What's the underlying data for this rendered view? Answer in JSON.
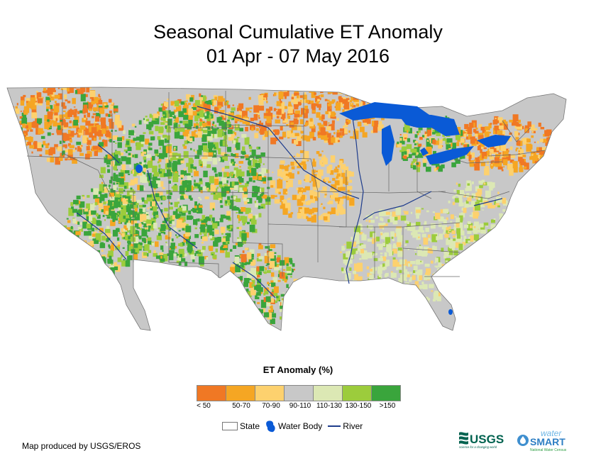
{
  "title": {
    "line1": "Seasonal Cumulative ET Anomaly",
    "line2": "01 Apr - 07 May 2016"
  },
  "legend": {
    "title": "ET Anomaly (%)",
    "classes": [
      {
        "label": "< 50",
        "color": "#f07824"
      },
      {
        "label": "50-70",
        "color": "#f5a623"
      },
      {
        "label": "70-90",
        "color": "#fdd16e"
      },
      {
        "label": "90-110",
        "color": "#c8c8c8"
      },
      {
        "label": "110-130",
        "color": "#dce8b4"
      },
      {
        "label": "130-150",
        "color": "#9ccc3c"
      },
      {
        "label": ">150",
        "color": "#3aa53c"
      }
    ]
  },
  "key": {
    "state": "State",
    "water_body": "Water Body",
    "river": "River"
  },
  "colors": {
    "water": "#0a5ad6",
    "river": "#1e3c8c",
    "state_border": "#666666"
  },
  "credit": "Map produced by USGS/EROS",
  "logos": {
    "usgs": "USGS",
    "usgs_tagline": "science for a changing world",
    "water": "water",
    "smart": "SMART",
    "census": "National Water Census"
  }
}
